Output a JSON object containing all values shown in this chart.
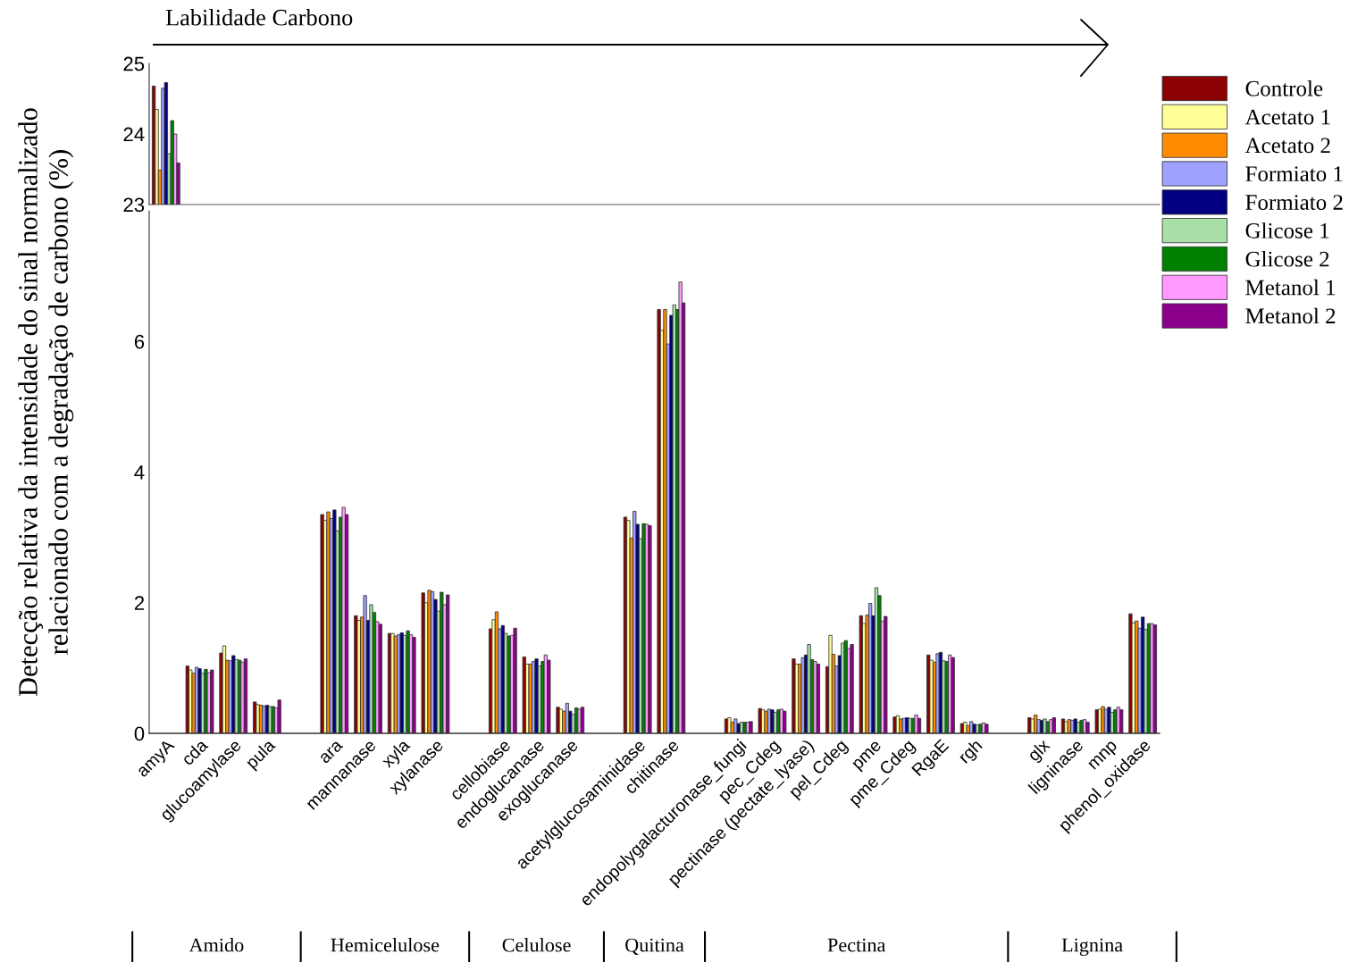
{
  "chart_data": [
    {
      "type": "bar",
      "categories": [
        null,
        null,
        null,
        null,
        null,
        null,
        null,
        null,
        null,
        null,
        null,
        null,
        null,
        null,
        null,
        null,
        null,
        null,
        null,
        null,
        null,
        null,
        null,
        null,
        null,
        null,
        null,
        null,
        null,
        null
      ],
      "series": [
        {
          "name": "Controle",
          "color": "#8b0000",
          "values": [
            24.68,
            null,
            null,
            null,
            null,
            null,
            null,
            null,
            null,
            null,
            null,
            null,
            null,
            null,
            null,
            null,
            null,
            null,
            null,
            null,
            null,
            null,
            null,
            null,
            null,
            null,
            null,
            null,
            null,
            null
          ]
        },
        {
          "name": "Acetato 1",
          "color": "#ffff99",
          "values": [
            24.35,
            null,
            null,
            null,
            null,
            null,
            null,
            null,
            null,
            null,
            null,
            null,
            null,
            null,
            null,
            null,
            null,
            null,
            null,
            null,
            null,
            null,
            null,
            null,
            null,
            null,
            null,
            null,
            null,
            null
          ]
        },
        {
          "name": "Acetato 2",
          "color": "#ff8c00",
          "values": [
            23.49,
            null,
            null,
            null,
            null,
            null,
            null,
            null,
            null,
            null,
            null,
            null,
            null,
            null,
            null,
            null,
            null,
            null,
            null,
            null,
            null,
            null,
            null,
            null,
            null,
            null,
            null,
            null,
            null,
            null
          ]
        },
        {
          "name": "Formiato 1",
          "color": "#a0a0ff",
          "values": [
            24.65,
            null,
            null,
            null,
            null,
            null,
            null,
            null,
            null,
            null,
            null,
            null,
            null,
            null,
            null,
            null,
            null,
            null,
            null,
            null,
            null,
            null,
            null,
            null,
            null,
            null,
            null,
            null,
            null,
            null
          ]
        },
        {
          "name": "Formiato 2",
          "color": "#000080",
          "values": [
            24.73,
            null,
            null,
            null,
            null,
            null,
            null,
            null,
            null,
            null,
            null,
            null,
            null,
            null,
            null,
            null,
            null,
            null,
            null,
            null,
            null,
            null,
            null,
            null,
            null,
            null,
            null,
            null,
            null,
            null
          ]
        },
        {
          "name": "Glicose 1",
          "color": "#a8e0a8",
          "values": [
            23.72,
            null,
            null,
            null,
            null,
            null,
            null,
            null,
            null,
            null,
            null,
            null,
            null,
            null,
            null,
            null,
            null,
            null,
            null,
            null,
            null,
            null,
            null,
            null,
            null,
            null,
            null,
            null,
            null,
            null
          ]
        },
        {
          "name": "Glicose 2",
          "color": "#008000",
          "values": [
            24.19,
            null,
            null,
            null,
            null,
            null,
            null,
            null,
            null,
            null,
            null,
            null,
            null,
            null,
            null,
            null,
            null,
            null,
            null,
            null,
            null,
            null,
            null,
            null,
            null,
            null,
            null,
            null,
            null,
            null
          ]
        },
        {
          "name": "Metanol 1",
          "color": "#ff99ff",
          "values": [
            24.0,
            null,
            null,
            null,
            null,
            null,
            null,
            null,
            null,
            null,
            null,
            null,
            null,
            null,
            null,
            null,
            null,
            null,
            null,
            null,
            null,
            null,
            null,
            null,
            null,
            null,
            null,
            null,
            null,
            null
          ]
        },
        {
          "name": "Metanol 2",
          "color": "#8b008b",
          "values": [
            23.59,
            null,
            null,
            null,
            null,
            null,
            null,
            null,
            null,
            null,
            null,
            null,
            null,
            null,
            null,
            null,
            null,
            null,
            null,
            null,
            null,
            null,
            null,
            null,
            null,
            null,
            null,
            null,
            null,
            null
          ]
        }
      ],
      "ylim": [
        23,
        25
      ],
      "yticks": [
        23,
        24,
        25
      ],
      "tick_labels": "y",
      "legend": "right",
      "grid": false,
      "annotations": [
        "Labilidade Carbono"
      ]
    },
    {
      "type": "bar",
      "categories": [
        "amyA",
        "cda",
        "glucoamylase",
        "pula",
        null,
        "ara",
        "mannanase",
        "xyla",
        "xylanase",
        null,
        "cellobiase",
        "endoglucanase",
        "exoglucanase",
        null,
        "acetylglucosaminidase",
        "chitinase",
        null,
        "endopolygalacturonase_fungi",
        "pec_Cdeg",
        "pectinase (pectate_lyase)",
        "pel_Cdeg",
        "pme",
        "pme_Cdeg",
        "RgaE",
        "rgh",
        null,
        "glx",
        "ligninase",
        "mnp",
        "phenol_oxidase"
      ],
      "series": [
        {
          "color": "#8b0000",
          "values": [
            null,
            1.03,
            1.23,
            0.48,
            null,
            3.35,
            1.8,
            1.53,
            2.15,
            null,
            1.6,
            1.17,
            0.4,
            null,
            3.31,
            6.49,
            null,
            0.22,
            0.38,
            1.14,
            1.02,
            1.8,
            0.25,
            1.2,
            0.15,
            null,
            0.24,
            0.22,
            0.36,
            1.83
          ]
        },
        {
          "color": "#ffff99",
          "values": [
            null,
            0.97,
            1.34,
            0.44,
            null,
            3.26,
            1.73,
            1.53,
            2.0,
            null,
            1.74,
            1.06,
            0.37,
            null,
            3.26,
            6.17,
            null,
            0.24,
            0.36,
            1.06,
            1.5,
            1.68,
            0.27,
            1.12,
            0.17,
            null,
            0.22,
            0.18,
            0.37,
            1.69
          ]
        },
        {
          "color": "#ff8c00",
          "values": [
            null,
            0.92,
            1.12,
            0.43,
            null,
            3.39,
            1.78,
            1.49,
            2.19,
            null,
            1.86,
            1.06,
            0.34,
            null,
            2.99,
            6.49,
            null,
            0.17,
            0.34,
            1.06,
            1.21,
            1.81,
            0.22,
            1.09,
            0.12,
            null,
            0.28,
            0.21,
            0.41,
            1.72
          ]
        },
        {
          "color": "#a0a0ff",
          "values": [
            null,
            1.01,
            1.11,
            0.42,
            null,
            3.29,
            2.11,
            1.51,
            2.17,
            null,
            1.6,
            1.1,
            0.46,
            null,
            3.4,
            5.96,
            null,
            0.22,
            0.37,
            1.16,
            1.03,
            1.99,
            0.23,
            1.22,
            0.18,
            null,
            0.21,
            0.2,
            0.37,
            1.61
          ]
        },
        {
          "color": "#000080",
          "values": [
            null,
            0.99,
            1.19,
            0.43,
            null,
            3.42,
            1.73,
            1.54,
            2.05,
            null,
            1.65,
            1.14,
            0.34,
            null,
            3.2,
            6.4,
            null,
            0.15,
            0.36,
            1.2,
            1.19,
            1.8,
            0.24,
            1.24,
            0.14,
            null,
            0.2,
            0.22,
            0.4,
            1.78
          ]
        },
        {
          "color": "#a8e0a8",
          "values": [
            null,
            0.92,
            1.13,
            0.41,
            null,
            3.1,
            1.97,
            1.5,
            1.87,
            null,
            1.53,
            1.03,
            0.29,
            null,
            2.98,
            6.56,
            null,
            0.17,
            0.32,
            1.36,
            1.38,
            2.23,
            0.23,
            1.11,
            0.13,
            null,
            0.22,
            0.17,
            0.32,
            1.59
          ]
        },
        {
          "color": "#008000",
          "values": [
            null,
            0.98,
            1.12,
            0.41,
            null,
            3.31,
            1.85,
            1.57,
            2.16,
            null,
            1.49,
            1.1,
            0.39,
            null,
            3.21,
            6.49,
            null,
            0.17,
            0.36,
            1.13,
            1.42,
            2.11,
            0.23,
            1.1,
            0.14,
            null,
            0.18,
            0.2,
            0.36,
            1.68
          ]
        },
        {
          "color": "#ff99ff",
          "values": [
            null,
            0.93,
            1.09,
            0.39,
            null,
            3.46,
            1.71,
            1.51,
            1.97,
            null,
            1.5,
            1.2,
            0.37,
            null,
            3.2,
            6.91,
            null,
            0.17,
            0.37,
            1.1,
            1.3,
            1.72,
            0.28,
            1.2,
            0.16,
            null,
            0.21,
            0.21,
            0.4,
            1.68
          ]
        },
        {
          "color": "#8b008b",
          "values": [
            null,
            0.97,
            1.14,
            0.51,
            null,
            3.35,
            1.67,
            1.47,
            2.12,
            null,
            1.61,
            1.12,
            0.4,
            null,
            3.18,
            6.59,
            null,
            0.18,
            0.34,
            1.06,
            1.36,
            1.79,
            0.23,
            1.16,
            0.14,
            null,
            0.24,
            0.17,
            0.36,
            1.66
          ]
        }
      ],
      "ylim": [
        0,
        8
      ],
      "yticks": [
        0,
        2,
        4,
        6
      ],
      "grid": false,
      "ylabel": "Detecção relativa da intensidade do sinal normalizado\nrelacionado com a degradação de carbono (%)",
      "annotations": [
        "Amido",
        "Hemicelulose",
        "Celulose",
        "Quitina",
        "Pectina",
        "Lignina"
      ]
    }
  ]
}
